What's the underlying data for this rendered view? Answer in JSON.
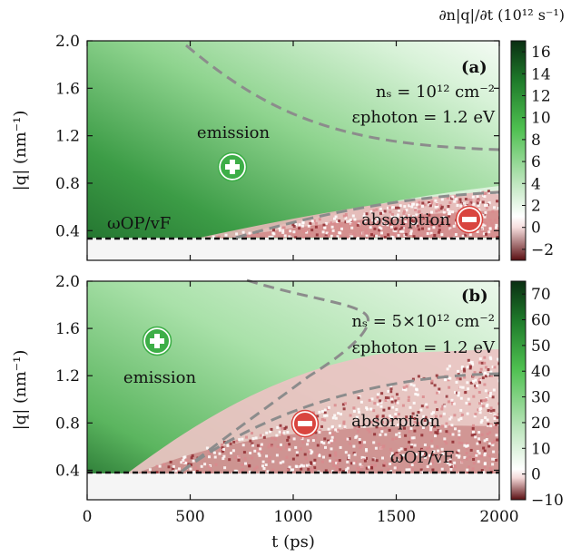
{
  "chart_data": [
    {
      "type": "heatmap",
      "panel_label": "(b)",
      "xlabel": "t (ps)",
      "ylabel": "|q| (nm⁻¹)",
      "xlim": [
        0,
        2000
      ],
      "ylim": [
        0.15,
        2.0
      ],
      "x_ticks": [
        "0",
        "500",
        "1000",
        "1500",
        "2000"
      ],
      "y_ticks": [
        "0.4",
        "0.8",
        "1.2",
        "1.6",
        "2.0"
      ],
      "annotations": {
        "ns": "nₛ = 5×10¹² cm⁻²",
        "eps": "εphoton = 1.2 eV",
        "emission": "emission",
        "absorption": "absorption",
        "threshold": "ωOP/vF"
      },
      "threshold_q": 0.27,
      "colorbar_ticks": [
        "70",
        "60",
        "50",
        "40",
        "30",
        "20",
        "10",
        "0",
        "−10"
      ],
      "colorbar_range": [
        -10,
        75
      ]
    },
    {
      "type": "heatmap",
      "panel_label": "(a)",
      "xlabel": "",
      "ylabel": "|q| (nm⁻¹)",
      "xlim": [
        0,
        2000
      ],
      "ylim": [
        0.15,
        2.0
      ],
      "y_ticks": [
        "0.4",
        "0.8",
        "1.2",
        "1.6",
        "2.0"
      ],
      "annotations": {
        "ns": "nₛ = 10¹² cm⁻²",
        "eps": "εphoton = 1.2 eV",
        "emission": "emission",
        "absorption": "absorption",
        "threshold": "ωOP/vF"
      },
      "threshold_q": 0.27,
      "colorbar_title": "∂n|q|/∂t (10¹² s⁻¹)",
      "colorbar_ticks": [
        "16",
        "14",
        "12",
        "10",
        "8",
        "6",
        "4",
        "2",
        "0",
        "−2"
      ],
      "colorbar_range": [
        -3,
        17
      ]
    }
  ]
}
